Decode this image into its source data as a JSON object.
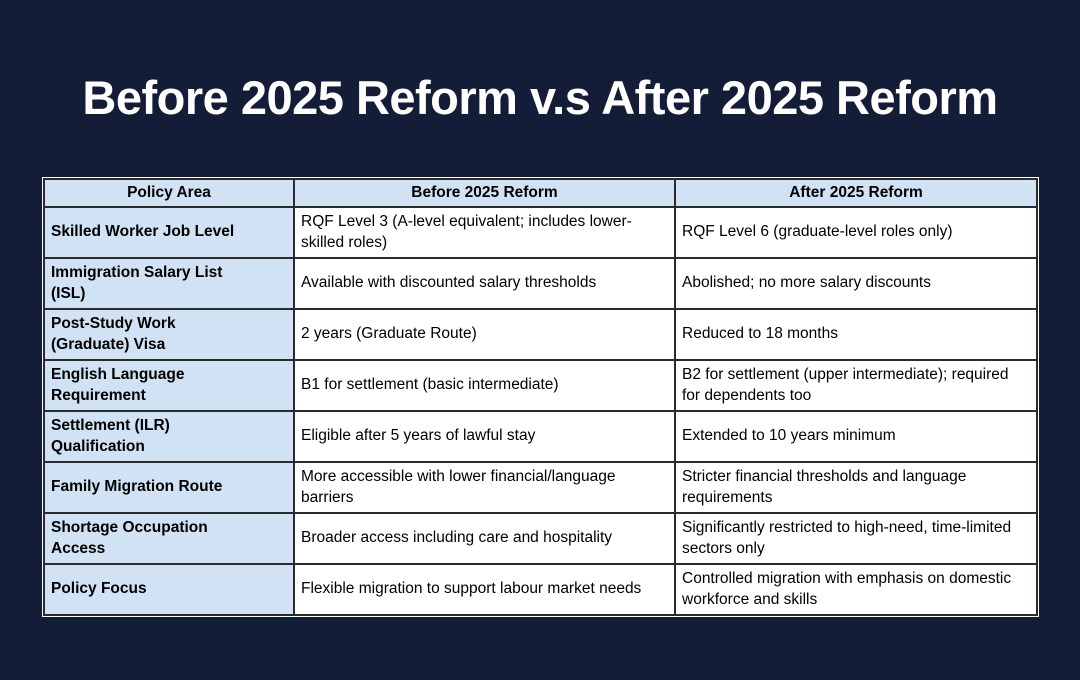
{
  "page": {
    "title": "Before 2025 Reform v.s After 2025 Reform",
    "background_color": "#141d38",
    "title_color": "#ffffff"
  },
  "table": {
    "header_bg_color": "#d0e2f3",
    "cell_bg_color": "#ffffff",
    "border_color": "#2b2b2b",
    "columns": [
      "Policy Area",
      "Before 2025 Reform",
      "After 2025 Reform"
    ],
    "rows": [
      {
        "policy_area": "Skilled Worker Job Level",
        "before": "RQF Level 3 (A-level equivalent; includes lower-skilled roles)",
        "after": "RQF Level 6 (graduate-level roles only)"
      },
      {
        "policy_area": "Immigration Salary List\n(ISL)",
        "before": "Available with discounted salary thresholds",
        "after": "Abolished; no more salary discounts"
      },
      {
        "policy_area": "Post-Study Work\n(Graduate) Visa",
        "before": "2 years (Graduate Route)",
        "after": "Reduced to 18 months"
      },
      {
        "policy_area": "English Language\nRequirement",
        "before": "B1 for settlement (basic intermediate)",
        "after": "B2 for settlement (upper intermediate); required for dependents too"
      },
      {
        "policy_area": "Settlement (ILR)\nQualification",
        "before": "Eligible after 5 years of lawful stay",
        "after": "Extended to 10 years minimum"
      },
      {
        "policy_area": "Family Migration Route",
        "before": "More accessible with lower financial/language barriers",
        "after": "Stricter financial thresholds and language requirements"
      },
      {
        "policy_area": "Shortage Occupation\nAccess",
        "before": "Broader access including care and hospitality",
        "after": "Significantly restricted to high-need, time-limited sectors only"
      },
      {
        "policy_area": "Policy Focus",
        "before": "Flexible migration to support labour market needs",
        "after": "Controlled migration with emphasis on domestic workforce and skills"
      }
    ]
  }
}
